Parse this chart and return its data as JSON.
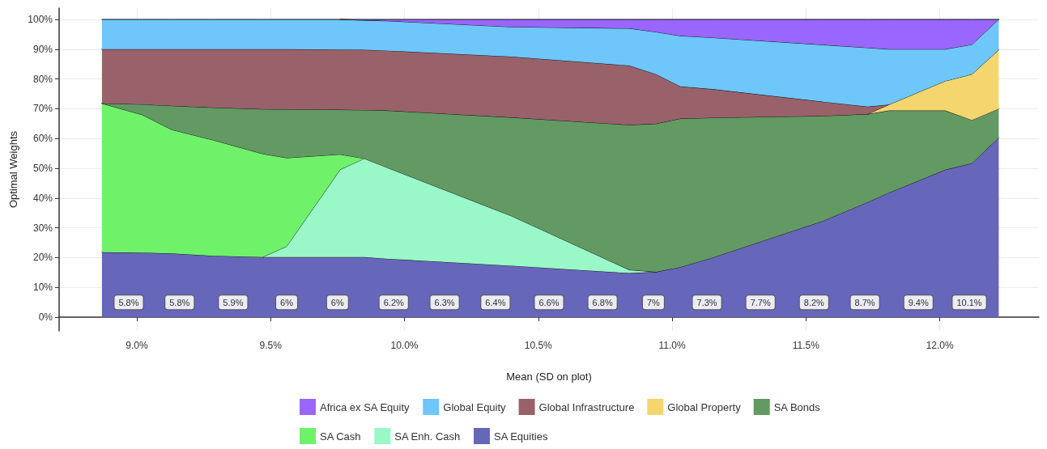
{
  "chart_data": {
    "type": "area",
    "stacked": true,
    "xlabel": "Mean (SD on plot)",
    "ylabel": "Optimal Weights",
    "x": [
      8.87,
      9.02,
      9.13,
      9.29,
      9.47,
      9.56,
      9.76,
      9.85,
      9.94,
      10.4,
      10.84,
      10.94,
      11.03,
      11.15,
      11.56,
      11.73,
      11.81,
      12.02,
      12.12,
      12.22
    ],
    "series": [
      {
        "name": "SA Equities",
        "color": "#6666bb",
        "values": [
          21.8,
          21.7,
          21.4,
          20.6,
          20.2,
          20.2,
          20.2,
          20.2,
          19.6,
          17.3,
          14.8,
          15.2,
          16.8,
          20.0,
          32.2,
          38.6,
          41.8,
          49.5,
          51.7,
          60.3
        ]
      },
      {
        "name": "SA Enh. Cash",
        "color": "#99f7c8",
        "values": [
          null,
          null,
          null,
          null,
          0,
          3.6,
          29.4,
          33.1,
          30.5,
          16.7,
          1.1,
          0,
          null,
          null,
          null,
          null,
          null,
          null,
          null,
          null
        ]
      },
      {
        "name": "SA Cash",
        "color": "#6ff26a",
        "values": [
          50.0,
          46.3,
          41.6,
          38.8,
          34.7,
          29.7,
          5.1,
          0,
          null,
          null,
          null,
          null,
          null,
          null,
          null,
          null,
          null,
          null,
          null,
          null
        ]
      },
      {
        "name": "SA Bonds",
        "color": "#639963",
        "values": [
          0,
          3.5,
          8.0,
          11.0,
          15.0,
          16.3,
          15.0,
          16.3,
          19.3,
          33.1,
          48.7,
          49.8,
          49.9,
          47.0,
          35.4,
          29.6,
          27.6,
          19.9,
          14.5,
          9.7
        ]
      },
      {
        "name": "Global Property",
        "color": "#f5d56e",
        "values": [
          null,
          null,
          null,
          null,
          null,
          null,
          null,
          null,
          null,
          null,
          null,
          null,
          null,
          null,
          null,
          0,
          2.0,
          9.9,
          15.4,
          19.8
        ]
      },
      {
        "name": "Global Infrastructure",
        "color": "#99626a",
        "values": [
          18.2,
          18.5,
          19.0,
          19.6,
          20.1,
          20.2,
          20.2,
          20.2,
          20.1,
          20.4,
          19.9,
          16.6,
          10.8,
          9.6,
          4.8,
          2.5,
          0,
          null,
          null,
          null
        ]
      },
      {
        "name": "Global Equity",
        "color": "#6ec6fa",
        "values": [
          10.0,
          10.0,
          10.0,
          10.0,
          10.0,
          10.0,
          10.1,
          9.9,
          10.0,
          10.0,
          12.5,
          14.2,
          17.0,
          17.3,
          19.1,
          19.8,
          18.6,
          10.7,
          10.0,
          10.2
        ]
      },
      {
        "name": "Africa ex SA Equity",
        "color": "#9966ff",
        "values": [
          null,
          null,
          null,
          null,
          null,
          null,
          0,
          0.3,
          0.5,
          2.5,
          3.0,
          4.2,
          5.5,
          6.1,
          8.5,
          9.5,
          10.0,
          10.0,
          8.4,
          0
        ]
      }
    ],
    "xlim": [
      8.71,
      12.37
    ],
    "xticks": [
      {
        "value": 9,
        "label": "9.0%"
      },
      {
        "value": 9.5,
        "label": "9.5%"
      },
      {
        "value": 10,
        "label": "10.0%"
      },
      {
        "value": 10.5,
        "label": "10.5%"
      },
      {
        "value": 11,
        "label": "11.0%"
      },
      {
        "value": 11.5,
        "label": "11.5%"
      },
      {
        "value": 12,
        "label": "12.0%"
      }
    ],
    "ylim": [
      -4.6,
      103.8
    ],
    "yticks": [
      {
        "value": 0,
        "label": "0%"
      },
      {
        "value": 10,
        "label": "10%"
      },
      {
        "value": 20,
        "label": "20%"
      },
      {
        "value": 30,
        "label": "30%"
      },
      {
        "value": 40,
        "label": "40%"
      },
      {
        "value": 50,
        "label": "50%"
      },
      {
        "value": 60,
        "label": "60%"
      },
      {
        "value": 70,
        "label": "70%"
      },
      {
        "value": 80,
        "label": "80%"
      },
      {
        "value": 90,
        "label": "90%"
      },
      {
        "value": 100,
        "label": "100%"
      }
    ],
    "annotations": [
      {
        "text": "5.8%",
        "x": 8.97,
        "y": 5
      },
      {
        "text": "5.8%",
        "x": 9.16,
        "y": 5
      },
      {
        "text": "5.9%",
        "x": 9.36,
        "y": 5
      },
      {
        "text": "6%",
        "x": 9.56,
        "y": 5
      },
      {
        "text": "6%",
        "x": 9.75,
        "y": 5
      },
      {
        "text": "6.2%",
        "x": 9.96,
        "y": 5
      },
      {
        "text": "6.3%",
        "x": 10.15,
        "y": 5
      },
      {
        "text": "6.4%",
        "x": 10.34,
        "y": 5
      },
      {
        "text": "6.6%",
        "x": 10.54,
        "y": 5
      },
      {
        "text": "6.8%",
        "x": 10.74,
        "y": 5
      },
      {
        "text": "7%",
        "x": 10.93,
        "y": 5
      },
      {
        "text": "7.3%",
        "x": 11.13,
        "y": 5
      },
      {
        "text": "7.7%",
        "x": 11.33,
        "y": 5
      },
      {
        "text": "8.2%",
        "x": 11.53,
        "y": 5
      },
      {
        "text": "8.7%",
        "x": 11.72,
        "y": 5
      },
      {
        "text": "9.4%",
        "x": 11.92,
        "y": 5
      },
      {
        "text": "10.1%",
        "x": 12.11,
        "y": 5
      }
    ],
    "grid": true,
    "legend": "bottom",
    "marker": "none",
    "line_style": "solid"
  }
}
